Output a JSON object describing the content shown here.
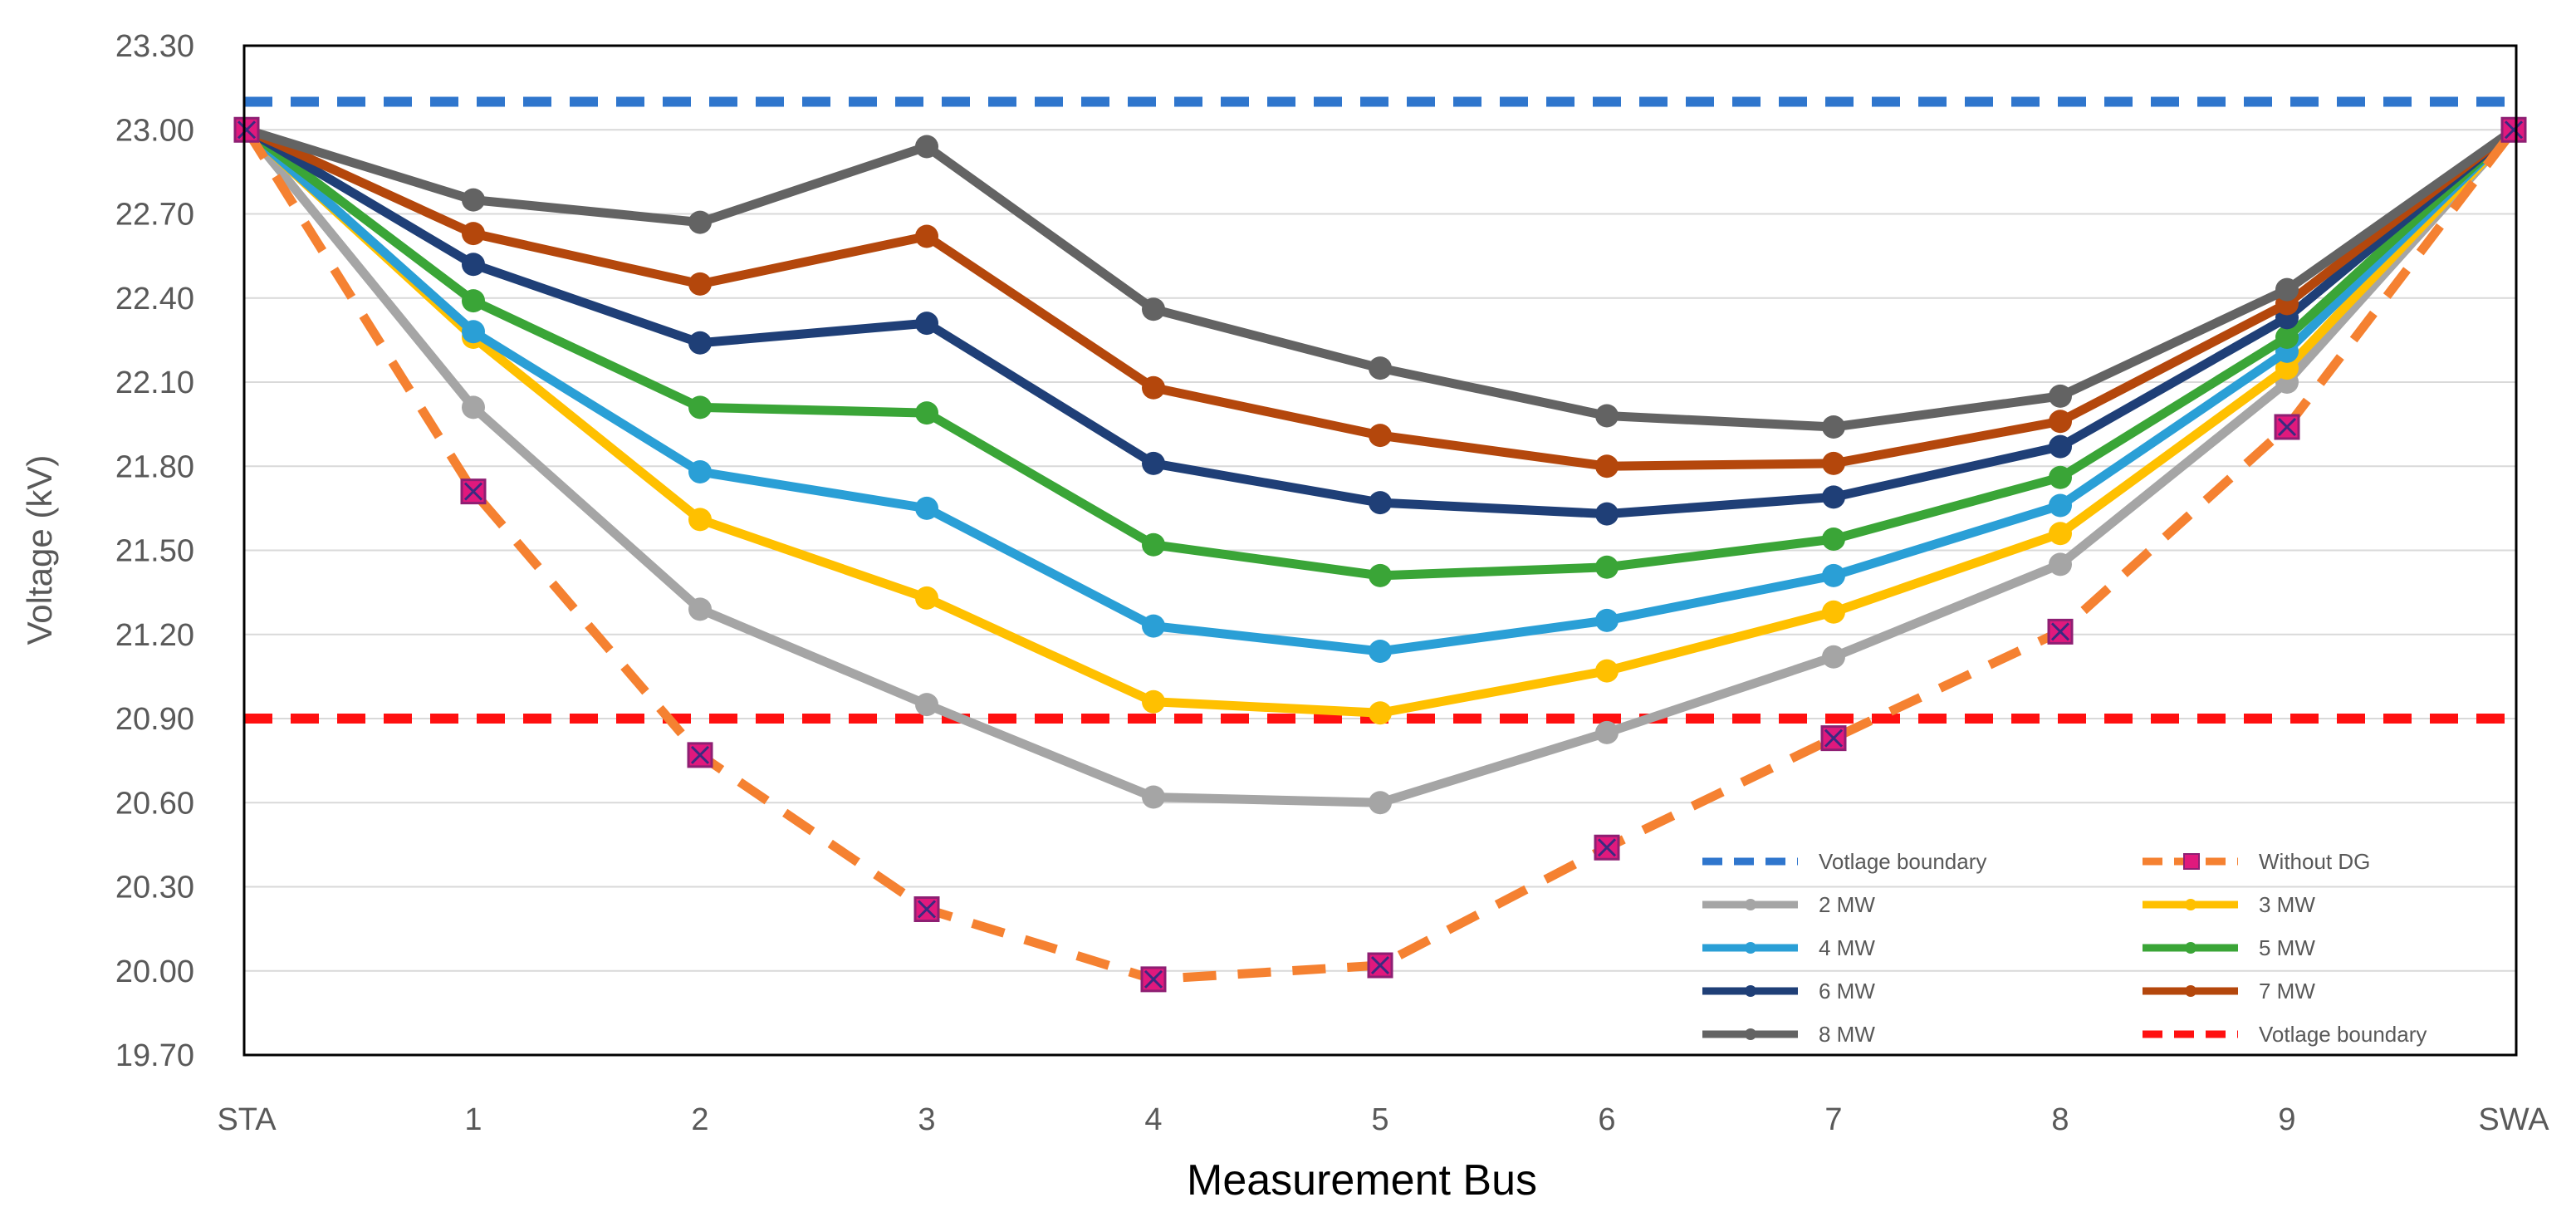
{
  "chart_data": {
    "type": "line",
    "title": "",
    "xlabel": "Measurement Bus",
    "ylabel": "Voltage (kV)",
    "categories": [
      "STA",
      "1",
      "2",
      "3",
      "4",
      "5",
      "6",
      "7",
      "8",
      "9",
      "SWA"
    ],
    "ylim": [
      19.7,
      23.3
    ],
    "yticks": [
      "19.70",
      "20.00",
      "20.30",
      "20.60",
      "20.90",
      "21.20",
      "21.50",
      "21.80",
      "22.10",
      "22.40",
      "22.70",
      "23.00",
      "23.30"
    ],
    "grid": true,
    "legend_position": "bottom-right",
    "series": [
      {
        "name": "2 MW",
        "color": "#a5a5a5",
        "style": "solid",
        "values": [
          23.0,
          22.01,
          21.29,
          20.95,
          20.62,
          20.6,
          20.85,
          21.12,
          21.45,
          22.1,
          23.0
        ]
      },
      {
        "name": "3 MW",
        "color": "#ffc000",
        "style": "solid",
        "values": [
          23.0,
          22.26,
          21.61,
          21.33,
          20.96,
          20.92,
          21.07,
          21.28,
          21.56,
          22.15,
          23.0
        ]
      },
      {
        "name": "4 MW",
        "color": "#2a9fd6",
        "style": "solid",
        "values": [
          23.0,
          22.28,
          21.78,
          21.65,
          21.23,
          21.14,
          21.25,
          21.41,
          21.66,
          22.21,
          23.0
        ]
      },
      {
        "name": "5 MW",
        "color": "#3aa537",
        "style": "solid",
        "values": [
          23.0,
          22.39,
          22.01,
          21.99,
          21.52,
          21.41,
          21.44,
          21.54,
          21.76,
          22.26,
          23.0
        ]
      },
      {
        "name": "6 MW",
        "color": "#1f3f77",
        "style": "solid",
        "values": [
          23.0,
          22.52,
          22.24,
          22.31,
          21.81,
          21.67,
          21.63,
          21.69,
          21.87,
          22.33,
          23.0
        ]
      },
      {
        "name": "7 MW",
        "color": "#b4470c",
        "style": "solid",
        "values": [
          23.0,
          22.63,
          22.45,
          22.62,
          22.08,
          21.91,
          21.8,
          21.81,
          21.96,
          22.38,
          23.0
        ]
      },
      {
        "name": "8 MW",
        "color": "#636363",
        "style": "solid",
        "values": [
          23.0,
          22.75,
          22.67,
          22.94,
          22.36,
          22.15,
          21.98,
          21.94,
          22.05,
          22.43,
          23.0
        ]
      },
      {
        "name": "Without DG",
        "color": "#f58131",
        "style": "dashed",
        "marker_color": "#e0197d",
        "values": [
          23.0,
          21.71,
          20.77,
          20.22,
          19.97,
          20.02,
          20.44,
          20.83,
          21.21,
          21.94,
          23.0
        ]
      }
    ],
    "reference_lines": [
      {
        "name": "Votlage boundary",
        "value": 23.1,
        "color": "#2f76cd"
      },
      {
        "name": "Votlage boundary",
        "value": 20.9,
        "color": "#ff1010"
      }
    ]
  }
}
